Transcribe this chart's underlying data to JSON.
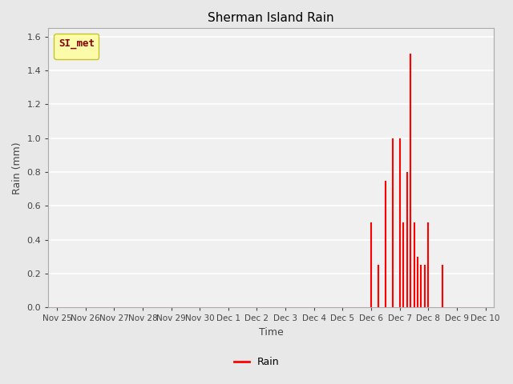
{
  "title": "Sherman Island Rain",
  "ylabel": "Rain (mm)",
  "xlabel": "Time",
  "legend_label": "Rain",
  "line_color": "#ff0000",
  "legend_box_color": "#ffff99",
  "legend_box_edge": "#bbbb00",
  "legend_text_color": "#880000",
  "legend_title": "SI_met",
  "fig_bg_color": "#e8e8e8",
  "plot_bg_color": "#f0f0f0",
  "ylim": [
    0.0,
    1.65
  ],
  "yticks": [
    0.0,
    0.2,
    0.4,
    0.6,
    0.8,
    1.0,
    1.2,
    1.4,
    1.6
  ],
  "time_data_numeric": [
    0,
    1,
    2,
    3,
    4,
    5,
    6,
    7,
    8,
    9,
    10,
    11.0,
    11.25,
    11.5,
    11.75,
    12.0,
    12.125,
    12.25,
    12.375,
    12.5,
    12.625,
    12.75,
    12.875,
    13.0,
    13.5,
    14,
    15
  ],
  "rain_data": [
    0.0,
    0.0,
    0.0,
    0.0,
    0.0,
    0.0,
    0.0,
    0.0,
    0.0,
    0.0,
    0.0,
    0.5,
    0.25,
    0.75,
    1.0,
    1.0,
    0.5,
    0.8,
    1.5,
    0.5,
    0.3,
    0.25,
    0.25,
    0.5,
    0.25,
    0.0,
    0.0
  ],
  "xtick_labels": [
    "Nov 25",
    "Nov 26",
    "Nov 27",
    "Nov 28",
    "Nov 29",
    "Nov 30",
    "Dec 1",
    "Dec 2",
    "Dec 3",
    "Dec 4",
    "Dec 5",
    "Dec 6",
    "Dec 7",
    "Dec 8",
    "Dec 9",
    "Dec 10"
  ]
}
